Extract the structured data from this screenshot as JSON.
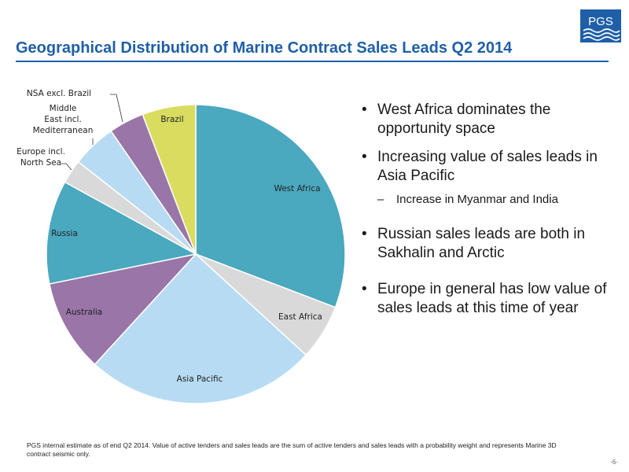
{
  "slide": {
    "title": "Geographical Distribution of Marine Contract Sales Leads Q2 2014",
    "logo_text": "PGS",
    "footnote": "PGS internal estimate as of  end Q2 2014. Value of active tenders and sales leads are the sum of active tenders and sales leads with a probability weight and represents Marine 3D contract seismic only.",
    "page_number": "-6-",
    "accent_color": "#1f5fa8"
  },
  "bullets": [
    {
      "text": "West Africa dominates the opportunity space"
    },
    {
      "text": "Increasing value of sales leads in Asia Pacific",
      "sub": "Increase in Myanmar and India"
    },
    {
      "text": "Russian sales leads are both in Sakhalin and Arctic"
    },
    {
      "text": "Europe in general has low value of sales leads at this time of year"
    }
  ],
  "chart_data": {
    "type": "pie",
    "title": "",
    "start_angle_deg": 0,
    "direction": "clockwise",
    "slices": [
      {
        "label": "West Africa",
        "value": 30.8,
        "color": "#4aa8bf"
      },
      {
        "label": "East Africa",
        "value": 6.0,
        "color": "#d9d9d9"
      },
      {
        "label": "Asia Pacific",
        "value": 25.0,
        "color": "#b7dbf3"
      },
      {
        "label": "Australia",
        "value": 10.0,
        "color": "#9975a8"
      },
      {
        "label": "Russia",
        "value": 11.2,
        "color": "#4aa8bf"
      },
      {
        "label": "Europe incl. North Sea",
        "value": 2.6,
        "color": "#d9d9d9"
      },
      {
        "label": "Middle East incl. Mediterranean",
        "value": 4.8,
        "color": "#b7dbf3"
      },
      {
        "label": "NSA excl. Brazil",
        "value": 3.8,
        "color": "#9975a8"
      },
      {
        "label": "Brazil",
        "value": 5.8,
        "color": "#d9dc5f"
      }
    ]
  }
}
